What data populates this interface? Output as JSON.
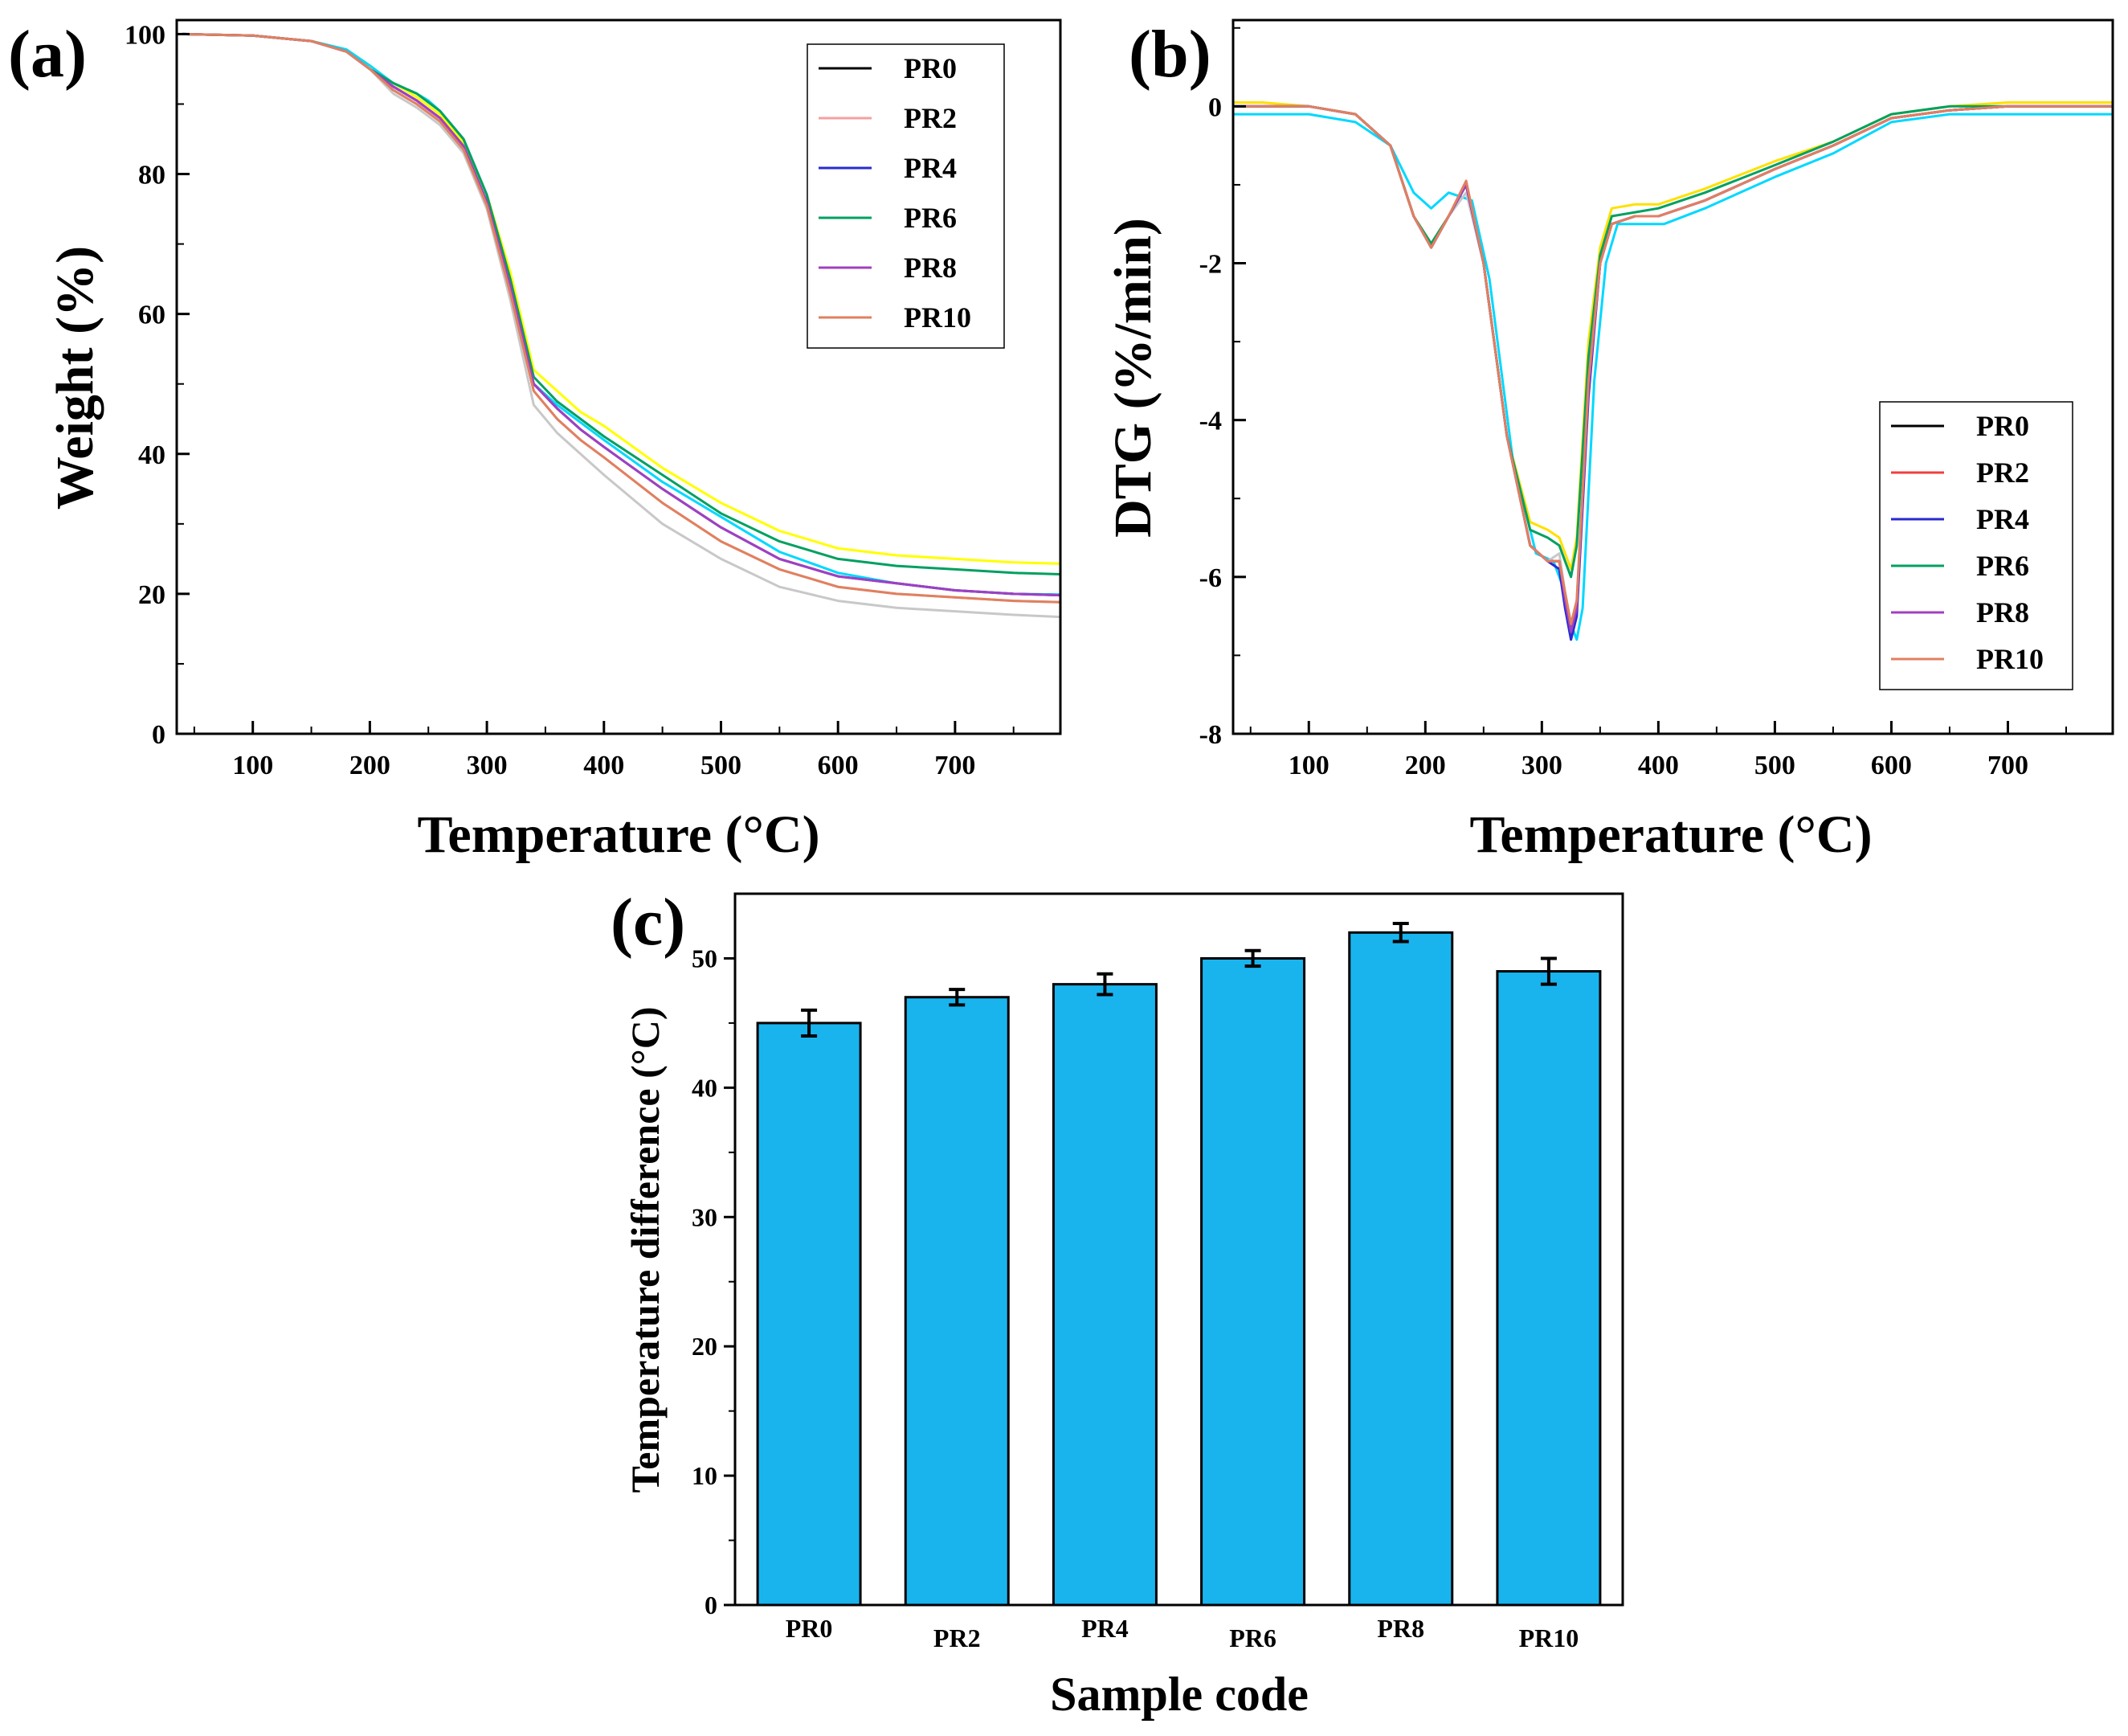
{
  "chart_data": [
    {
      "panel": "(a)",
      "type": "line",
      "xlabel": "Temperature (°C)",
      "ylabel": "Weight (%)",
      "xlim": [
        35,
        790
      ],
      "ylim": [
        0,
        102
      ],
      "xticks": [
        100,
        200,
        300,
        400,
        500,
        600,
        700
      ],
      "yticks": [
        0,
        20,
        40,
        60,
        80,
        100
      ],
      "legend_position": "top-right",
      "series": [
        {
          "name": "PR0",
          "color": "#c8c8c8",
          "x": [
            40,
            100,
            150,
            180,
            200,
            220,
            240,
            260,
            280,
            300,
            320,
            340,
            360,
            380,
            400,
            450,
            500,
            550,
            600,
            650,
            700,
            750,
            790
          ],
          "y": [
            100,
            99.8,
            99,
            97.5,
            95,
            91.5,
            89.5,
            87,
            83,
            75,
            62,
            47,
            43,
            40,
            37,
            30,
            25,
            21,
            19,
            18,
            17.5,
            17,
            16.7
          ]
        },
        {
          "name": "PR2",
          "color": "#f5a0a0",
          "x": [
            40,
            100,
            150,
            180,
            200,
            220,
            240,
            260,
            280,
            300,
            320,
            340,
            360,
            380,
            400,
            450,
            500,
            550,
            600,
            650,
            700,
            750,
            790
          ],
          "y": [
            100,
            99.8,
            99,
            97.5,
            95,
            92,
            90,
            87.5,
            83.5,
            75.5,
            63,
            49,
            45,
            42,
            39.5,
            33,
            27.5,
            23.5,
            21,
            20,
            19.5,
            19,
            18.8
          ]
        },
        {
          "name": "PR4",
          "color": "#2a2ad0",
          "x": [
            40,
            100,
            150,
            180,
            200,
            220,
            240,
            260,
            280,
            300,
            320,
            340,
            360,
            380,
            400,
            450,
            500,
            550,
            600,
            650,
            700,
            750,
            790
          ],
          "y": [
            100,
            99.8,
            99,
            97.5,
            95,
            92.5,
            90.5,
            88,
            84,
            76,
            64,
            50,
            46.5,
            43.5,
            41,
            35,
            29.5,
            25,
            22.5,
            21.5,
            20.5,
            20,
            19.8
          ]
        },
        {
          "name": "PR6",
          "color": "#00a060",
          "x": [
            40,
            100,
            150,
            180,
            200,
            220,
            240,
            260,
            280,
            300,
            320,
            340,
            360,
            380,
            400,
            450,
            500,
            550,
            600,
            650,
            700,
            750,
            790
          ],
          "y": [
            100,
            99.8,
            99,
            97.5,
            95,
            93,
            91.5,
            89,
            85,
            77,
            65,
            51,
            47.5,
            45,
            42.5,
            37,
            31.5,
            27.5,
            25,
            24,
            23.5,
            23,
            22.8
          ]
        },
        {
          "name": "PR8",
          "color": "#a040c0",
          "x": [
            40,
            100,
            150,
            180,
            200,
            220,
            240,
            260,
            280,
            300,
            320,
            340,
            360,
            380,
            400,
            450,
            500,
            550,
            600,
            650,
            700,
            750,
            790
          ],
          "y": [
            100,
            99.8,
            99,
            97.5,
            95,
            92.5,
            90.5,
            88,
            84,
            76,
            64,
            50,
            46.5,
            43.5,
            41,
            35,
            29.5,
            25,
            22.5,
            21.5,
            20.5,
            20,
            19.8
          ]
        },
        {
          "name": "PR10",
          "color": "#e08060",
          "x": [
            40,
            100,
            150,
            180,
            200,
            220,
            240,
            260,
            280,
            300,
            320,
            340,
            360,
            380,
            400,
            450,
            500,
            550,
            600,
            650,
            700,
            750,
            790
          ],
          "y": [
            100,
            99.8,
            99,
            97.5,
            95,
            92,
            90,
            87.5,
            83.5,
            75.5,
            63,
            49,
            45,
            42,
            39.5,
            33,
            27.5,
            23.5,
            21,
            20,
            19.5,
            19,
            18.8
          ]
        },
        {
          "name": "",
          "color": "#ffff00",
          "x": [
            40,
            100,
            150,
            180,
            200,
            220,
            240,
            260,
            280,
            300,
            320,
            340,
            360,
            380,
            400,
            450,
            500,
            550,
            600,
            650,
            700,
            750,
            790
          ],
          "y": [
            100,
            99.8,
            99,
            97.8,
            95.5,
            93,
            91,
            88.5,
            84.5,
            77,
            66,
            52,
            49,
            46,
            44,
            38,
            33,
            29,
            26.5,
            25.5,
            25,
            24.5,
            24.3
          ]
        },
        {
          "name": "",
          "color": "#00d8ff",
          "x": [
            40,
            100,
            150,
            180,
            200,
            220,
            240,
            250,
            260,
            280,
            300,
            320,
            340,
            360,
            380,
            400,
            450,
            500,
            550,
            600,
            650,
            700,
            750,
            790
          ],
          "y": [
            100,
            99.8,
            99,
            97.8,
            95.5,
            93,
            91.5,
            90.5,
            89,
            85,
            77,
            64,
            50,
            47,
            44.5,
            42,
            36,
            31,
            26,
            23,
            21.5,
            20.5,
            20,
            19.9
          ]
        }
      ]
    },
    {
      "panel": "(b)",
      "type": "line",
      "xlabel": "Temperature (°C)",
      "ylabel": "DTG (%/min)",
      "xlim": [
        35,
        790
      ],
      "ylim": [
        -8,
        1.1
      ],
      "xticks": [
        100,
        200,
        300,
        400,
        500,
        600,
        700
      ],
      "yticks": [
        -8,
        -6,
        -4,
        -2,
        0
      ],
      "legend_position": "bottom-right",
      "series": [
        {
          "name": "PR0",
          "color": "#c8c8c8",
          "x": [
            35,
            60,
            100,
            140,
            170,
            190,
            205,
            220,
            235,
            250,
            270,
            290,
            305,
            315,
            320,
            325,
            330,
            340,
            350,
            360,
            380,
            400,
            440,
            500,
            550,
            600,
            650,
            700,
            790
          ],
          "y": [
            0,
            0,
            0,
            -0.1,
            -0.5,
            -1.4,
            -1.8,
            -1.4,
            -1.1,
            -2,
            -4.2,
            -5.6,
            -5.8,
            -5.7,
            -6.2,
            -6.6,
            -6.3,
            -3.5,
            -2,
            -1.5,
            -1.4,
            -1.4,
            -1.2,
            -0.8,
            -0.5,
            -0.15,
            -0.05,
            0,
            0
          ]
        },
        {
          "name": "PR2",
          "color": "#f04040",
          "x": [
            35,
            60,
            100,
            140,
            170,
            190,
            205,
            220,
            235,
            250,
            270,
            290,
            305,
            315,
            320,
            325,
            330,
            340,
            350,
            360,
            380,
            400,
            440,
            500,
            550,
            600,
            650,
            700,
            790
          ],
          "y": [
            0,
            0,
            0,
            -0.1,
            -0.5,
            -1.4,
            -1.8,
            -1.4,
            -1.0,
            -2,
            -4.2,
            -5.6,
            -5.8,
            -5.8,
            -6.3,
            -6.7,
            -6.4,
            -3.6,
            -2,
            -1.5,
            -1.4,
            -1.4,
            -1.2,
            -0.8,
            -0.5,
            -0.15,
            -0.05,
            0,
            0
          ]
        },
        {
          "name": "PR4",
          "color": "#2a2ad0",
          "x": [
            35,
            60,
            100,
            140,
            170,
            190,
            205,
            220,
            235,
            250,
            270,
            290,
            305,
            315,
            320,
            325,
            330,
            340,
            350,
            360,
            380,
            400,
            440,
            500,
            550,
            600,
            650,
            700,
            790
          ],
          "y": [
            0,
            0,
            0,
            -0.1,
            -0.5,
            -1.4,
            -1.8,
            -1.4,
            -1.0,
            -2,
            -4.2,
            -5.6,
            -5.8,
            -5.9,
            -6.4,
            -6.8,
            -6.5,
            -3.7,
            -2,
            -1.5,
            -1.4,
            -1.4,
            -1.2,
            -0.8,
            -0.5,
            -0.15,
            -0.05,
            0,
            0
          ]
        },
        {
          "name": "PR6",
          "color": "#00a060",
          "x": [
            35,
            60,
            100,
            140,
            170,
            190,
            205,
            220,
            235,
            250,
            270,
            290,
            305,
            315,
            320,
            325,
            330,
            340,
            350,
            360,
            380,
            400,
            440,
            500,
            550,
            600,
            650,
            700,
            790
          ],
          "y": [
            0,
            0,
            0,
            -0.1,
            -0.5,
            -1.4,
            -1.75,
            -1.4,
            -1.0,
            -2,
            -4.2,
            -5.4,
            -5.5,
            -5.6,
            -5.8,
            -6.0,
            -5.6,
            -3.2,
            -1.9,
            -1.4,
            -1.35,
            -1.3,
            -1.1,
            -0.75,
            -0.45,
            -0.1,
            0,
            0,
            0
          ]
        },
        {
          "name": "PR8",
          "color": "#a040c0",
          "x": [
            35,
            60,
            100,
            140,
            170,
            190,
            205,
            220,
            235,
            250,
            270,
            290,
            305,
            315,
            320,
            325,
            330,
            340,
            350,
            360,
            380,
            400,
            440,
            500,
            550,
            600,
            650,
            700,
            790
          ],
          "y": [
            0,
            0,
            0,
            -0.1,
            -0.5,
            -1.4,
            -1.8,
            -1.4,
            -1.0,
            -2,
            -4.2,
            -5.6,
            -5.8,
            -5.8,
            -6.3,
            -6.7,
            -6.4,
            -3.6,
            -2,
            -1.5,
            -1.4,
            -1.4,
            -1.2,
            -0.8,
            -0.5,
            -0.15,
            -0.05,
            0,
            0
          ]
        },
        {
          "name": "PR10",
          "color": "#e08060",
          "x": [
            35,
            60,
            100,
            140,
            170,
            190,
            205,
            220,
            235,
            250,
            270,
            290,
            305,
            315,
            320,
            325,
            330,
            340,
            350,
            360,
            380,
            400,
            440,
            500,
            550,
            600,
            650,
            700,
            790
          ],
          "y": [
            0,
            0,
            0,
            -0.1,
            -0.5,
            -1.4,
            -1.8,
            -1.4,
            -0.95,
            -2,
            -4.2,
            -5.6,
            -5.8,
            -5.8,
            -6.2,
            -6.6,
            -6.3,
            -3.5,
            -2,
            -1.5,
            -1.4,
            -1.4,
            -1.2,
            -0.8,
            -0.5,
            -0.15,
            -0.05,
            0,
            0
          ]
        },
        {
          "name": "",
          "color": "#ffe000",
          "x": [
            35,
            60,
            100,
            140,
            170,
            190,
            205,
            220,
            235,
            250,
            270,
            290,
            305,
            315,
            320,
            325,
            330,
            340,
            350,
            360,
            380,
            400,
            440,
            500,
            550,
            600,
            650,
            700,
            790
          ],
          "y": [
            0.05,
            0.05,
            0,
            -0.1,
            -0.5,
            -1.4,
            -1.75,
            -1.4,
            -1.0,
            -2,
            -4.2,
            -5.3,
            -5.4,
            -5.5,
            -5.7,
            -5.9,
            -5.5,
            -3.0,
            -1.8,
            -1.3,
            -1.25,
            -1.25,
            -1.05,
            -0.7,
            -0.45,
            -0.1,
            0,
            0.05,
            0.05
          ]
        },
        {
          "name": "",
          "color": "#00d8ff",
          "x": [
            35,
            60,
            100,
            140,
            170,
            190,
            205,
            220,
            240,
            255,
            275,
            295,
            310,
            320,
            325,
            330,
            335,
            345,
            355,
            365,
            385,
            405,
            440,
            500,
            550,
            600,
            650,
            700,
            790
          ],
          "y": [
            -0.1,
            -0.1,
            -0.1,
            -0.2,
            -0.5,
            -1.1,
            -1.3,
            -1.1,
            -1.2,
            -2.2,
            -4.5,
            -5.7,
            -5.8,
            -6.2,
            -6.6,
            -6.8,
            -6.4,
            -3.5,
            -2.0,
            -1.5,
            -1.5,
            -1.5,
            -1.3,
            -0.9,
            -0.6,
            -0.2,
            -0.1,
            -0.1,
            -0.1
          ]
        }
      ]
    },
    {
      "panel": "(c)",
      "type": "bar",
      "xlabel": "Sample code",
      "ylabel": "Temperature difference (°C)",
      "ylim": [
        0,
        55
      ],
      "yticks": [
        0,
        10,
        20,
        30,
        40,
        50
      ],
      "categories": [
        "PR0",
        "PR2",
        "PR4",
        "PR6",
        "PR8",
        "PR10"
      ],
      "values": [
        45,
        47,
        48,
        50,
        52,
        49
      ],
      "errors": [
        1.0,
        0.6,
        0.8,
        0.6,
        0.7,
        1.0
      ],
      "bar_color": "#19b4ee"
    }
  ]
}
